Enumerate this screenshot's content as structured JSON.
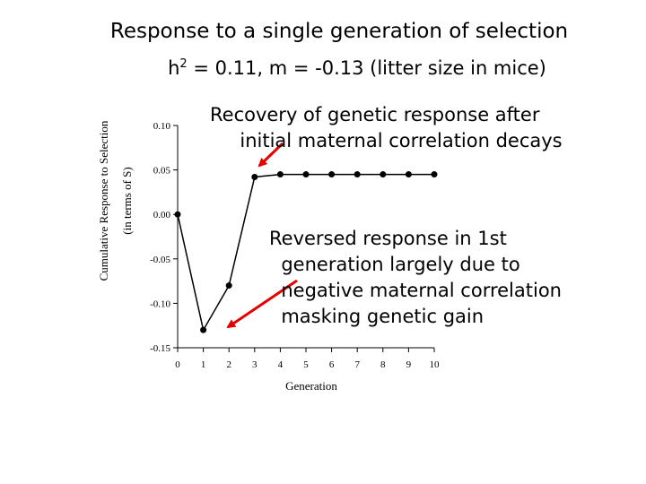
{
  "title": "Response to a single generation of selection",
  "subtitle": {
    "prefix": "h",
    "superscript": "2",
    "rest": " = 0.11, m = -0.13  (litter size in mice)"
  },
  "annotations": {
    "recovery": "Recovery of genetic response after\n     initial maternal correlation decays",
    "reversed": "Reversed response in 1st\n  generation largely due to\n  negative maternal correlation\n  masking genetic gain"
  },
  "colors": {
    "arrow": "#e60000",
    "line": "#000000"
  },
  "chart_data": {
    "type": "line",
    "title": "Response to a single generation of selection",
    "xlabel": "Generation",
    "ylabel": "Cumulative Response to Selection",
    "ylabel2": "(in terms of S)",
    "xlim": [
      0,
      10
    ],
    "ylim": [
      -0.15,
      0.1
    ],
    "xticks": [
      "0",
      "1",
      "2",
      "3",
      "4",
      "5",
      "6",
      "7",
      "8",
      "9",
      "10"
    ],
    "yticks": [
      "0.10",
      "0.05",
      "0.00",
      "-0.05",
      "-0.10",
      "-0.15"
    ],
    "x": [
      0,
      1,
      2,
      3,
      4,
      5,
      6,
      7,
      8,
      9,
      10
    ],
    "y": [
      0.0,
      -0.13,
      -0.08,
      0.042,
      0.045,
      0.045,
      0.045,
      0.045,
      0.045,
      0.045,
      0.045
    ],
    "grid": false,
    "legend": "none"
  }
}
